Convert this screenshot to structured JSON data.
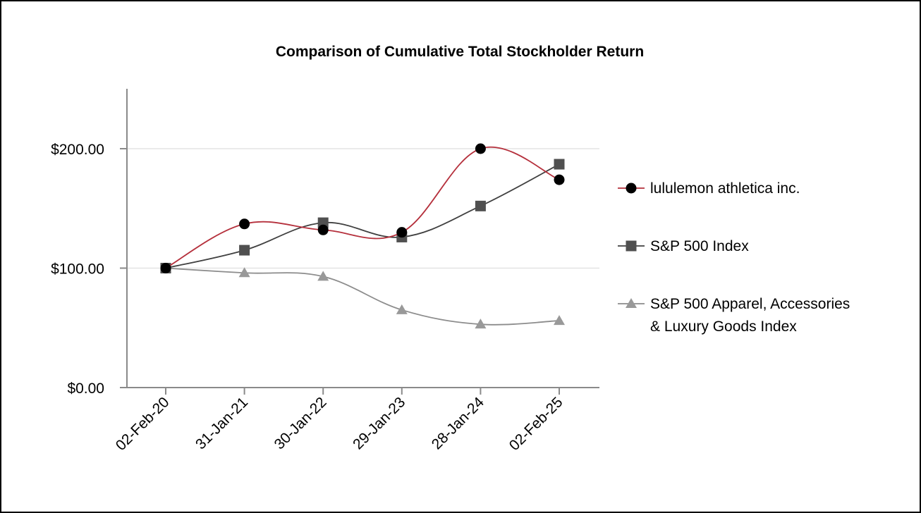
{
  "chart_data": {
    "type": "line",
    "title": "Comparison of Cumulative Total Stockholder Return",
    "categories": [
      "02-Feb-20",
      "31-Jan-21",
      "30-Jan-22",
      "29-Jan-23",
      "28-Jan-24",
      "02-Feb-25"
    ],
    "ylim": [
      0,
      250
    ],
    "yticks": [
      0,
      100,
      200
    ],
    "ytick_labels": [
      "$0.00",
      "$100.00",
      "$200.00"
    ],
    "gridlines": [
      100,
      200
    ],
    "xlabel": "",
    "ylabel": "",
    "legend_position": "right",
    "series": [
      {
        "name": "lululemon athletica inc.",
        "legend_lines": [
          "lululemon athletica inc."
        ],
        "marker": "circle",
        "line_color": "#b5303c",
        "marker_color": "#000000",
        "values": [
          100,
          137,
          132,
          130,
          200,
          174
        ]
      },
      {
        "name": "S&P 500 Index",
        "legend_lines": [
          "S&P 500 Index"
        ],
        "marker": "square",
        "line_color": "#404040",
        "marker_color": "#505050",
        "values": [
          100,
          115,
          138,
          126,
          152,
          187
        ]
      },
      {
        "name": "S&P 500 Apparel, Accessories & Luxury Goods Index",
        "legend_lines": [
          "S&P 500 Apparel, Accessories",
          "& Luxury Goods Index"
        ],
        "marker": "triangle",
        "line_color": "#8c8c8c",
        "marker_color": "#999999",
        "values": [
          100,
          96,
          93,
          65,
          53,
          56
        ]
      }
    ]
  }
}
